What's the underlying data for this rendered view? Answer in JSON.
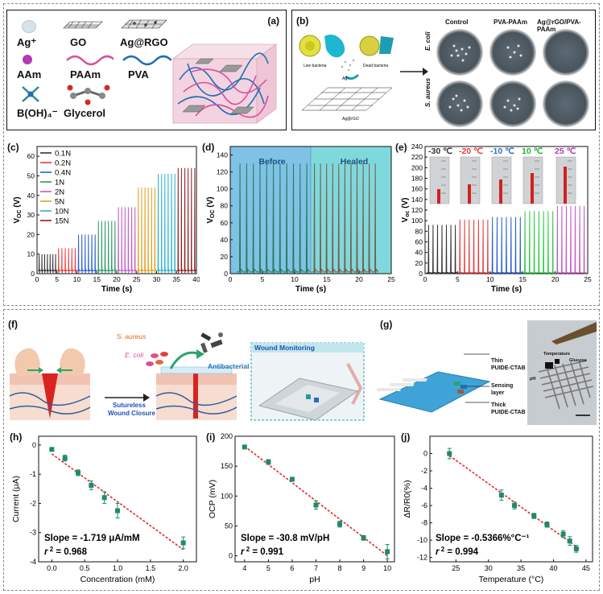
{
  "figure": {
    "panel_labels": [
      "(a)",
      "(b)",
      "(c)",
      "(d)",
      "(e)",
      "(f)",
      "(g)",
      "(h)",
      "(i)",
      "(j)"
    ]
  },
  "panel_a": {
    "materials": [
      "Ag⁺",
      "GO",
      "Ag@RGO",
      "AAm",
      "PAAm",
      "PVA",
      "B(OH)₄⁻",
      "Glycerol"
    ],
    "colors": {
      "pvachain": "#1f6fb5",
      "paamchain": "#d94f9a",
      "gel": "#f3d3e0"
    }
  },
  "panel_b": {
    "col_headers": [
      "Control",
      "PVA-PAAm",
      "Ag@rGO/PVA-PAAm"
    ],
    "row_labels": [
      "E. coli",
      "S. aureus"
    ],
    "schema_labels": [
      "Live bacteria",
      "Dead bacteria",
      "Ag⁺",
      "Ag@rGO"
    ]
  },
  "panel_c": {
    "legend": [
      "0.1N",
      "0.2N",
      "0.4N",
      "1N",
      "2N",
      "5N",
      "10N",
      "15N"
    ],
    "xlabel": "Time (s)",
    "ylabel": "V",
    "ylabel_sub": "OC",
    "ylabel_unit": "(V)",
    "xticks": [
      "0",
      "5",
      "10",
      "15",
      "20",
      "25",
      "30",
      "35",
      "40"
    ],
    "yticks": [
      "0",
      "10",
      "20",
      "30",
      "40",
      "50",
      "60"
    ]
  },
  "panel_d": {
    "labels": [
      "Before",
      "Healed"
    ],
    "xlabel": "Time (s)",
    "ylabel": "V",
    "ylabel_sub": "OC",
    "ylabel_unit": "(V)",
    "xticks": [
      "0",
      "5",
      "10",
      "15",
      "20",
      "25"
    ],
    "yticks": [
      "0",
      "20",
      "40",
      "60",
      "80",
      "100",
      "120",
      "140"
    ]
  },
  "panel_e": {
    "temps": [
      "-30 ℃",
      "-20 ℃",
      "-10 ℃",
      "10 ℃",
      "25 ℃"
    ],
    "xlabel": "Time (s)",
    "ylabel": "V",
    "ylabel_sub": "oc",
    "ylabel_unit": "(V)",
    "xticks": [
      "0",
      "5",
      "10",
      "15",
      "20",
      "25"
    ],
    "yticks": [
      "0",
      "20",
      "40",
      "60",
      "80",
      "100",
      "120",
      "140",
      "160",
      "180",
      "200",
      "220",
      "240"
    ]
  },
  "panel_f": {
    "labels": [
      "S. aureus",
      "E. coli",
      "Antibacterial",
      "Wound Monitoring",
      "Sutureless",
      "Wound Closure"
    ]
  },
  "panel_g": {
    "labels": [
      "Thin",
      "PUIDE-CTAB",
      "Sensing",
      "layer",
      "Thick",
      "PUIDE-CTAB",
      "Temperature",
      "Glucose",
      "pH"
    ]
  },
  "chart_data": [
    {
      "type": "line",
      "panel": "c",
      "xlabel": "Time (s)",
      "ylabel": "VOC (V)",
      "xlim": [
        0,
        40
      ],
      "ylim": [
        0,
        65
      ],
      "series": [
        {
          "name": "0.1N",
          "values": [
            10
          ]
        },
        {
          "name": "0.2N",
          "values": [
            13
          ]
        },
        {
          "name": "0.4N",
          "values": [
            20
          ]
        },
        {
          "name": "1N",
          "values": [
            27
          ]
        },
        {
          "name": "2N",
          "values": [
            34
          ]
        },
        {
          "name": "5N",
          "values": [
            44
          ]
        },
        {
          "name": "10N",
          "values": [
            51
          ]
        },
        {
          "name": "15N",
          "values": [
            54
          ]
        }
      ]
    },
    {
      "type": "line",
      "panel": "d",
      "xlabel": "Time (s)",
      "ylabel": "VOC (V)",
      "xlim": [
        0,
        25
      ],
      "ylim": [
        0,
        150
      ],
      "series": [
        {
          "name": "Before",
          "values": [
            130
          ]
        },
        {
          "name": "Healed",
          "values": [
            130
          ]
        }
      ]
    },
    {
      "type": "line",
      "panel": "e",
      "xlabel": "Time (s)",
      "ylabel": "Voc (V)",
      "xlim": [
        0,
        25
      ],
      "ylim": [
        0,
        240
      ],
      "series": [
        {
          "name": "-30 ℃",
          "values": [
            92
          ]
        },
        {
          "name": "-20 ℃",
          "values": [
            102
          ]
        },
        {
          "name": "-10 ℃",
          "values": [
            107
          ]
        },
        {
          "name": "10 ℃",
          "values": [
            118
          ]
        },
        {
          "name": "25 ℃",
          "values": [
            128
          ]
        }
      ]
    },
    {
      "type": "scatter",
      "panel": "h",
      "xlabel": "Concentration (mM)",
      "ylabel": "Current (μA)",
      "xlim": [
        -0.2,
        2.2
      ],
      "ylim": [
        -4,
        0.3
      ],
      "xticks": [
        "0.0",
        "0.5",
        "1.0",
        "1.5",
        "2.0"
      ],
      "yticks": [
        "0",
        "-1",
        "-2",
        "-3",
        "-4"
      ],
      "x": [
        0.0,
        0.2,
        0.4,
        0.6,
        0.8,
        1.0,
        2.0
      ],
      "y": [
        -0.15,
        -0.45,
        -0.95,
        -1.38,
        -1.8,
        -2.25,
        -3.35
      ],
      "annotations": [
        "Slope = -1.719 μA/mM",
        "r 2 = 0.968"
      ]
    },
    {
      "type": "scatter",
      "panel": "i",
      "xlabel": "pH",
      "ylabel": "OCP (mV)",
      "xlim": [
        3.6,
        10.3
      ],
      "ylim": [
        -10,
        200
      ],
      "xticks": [
        "4",
        "5",
        "6",
        "7",
        "8",
        "9",
        "10"
      ],
      "yticks": [
        "0",
        "50",
        "100",
        "150",
        "200"
      ],
      "x": [
        4,
        5,
        6,
        7,
        8,
        9,
        10
      ],
      "y": [
        182,
        157,
        128,
        85,
        53,
        30,
        7
      ],
      "annotations": [
        "Slope = -30.8 mV/pH",
        "r 2 = 0.991"
      ]
    },
    {
      "type": "scatter",
      "panel": "j",
      "xlabel": "Temperature (°C)",
      "ylabel": "ΔR/R0(%)",
      "xlim": [
        21,
        46
      ],
      "ylim": [
        -12.5,
        2
      ],
      "xticks": [
        "25",
        "30",
        "35",
        "40",
        "45"
      ],
      "yticks": [
        "0",
        "-2",
        "-4",
        "-6",
        "-8",
        "-10",
        "-12"
      ],
      "x": [
        24,
        32,
        34,
        37,
        39,
        41.5,
        42.5,
        43.5
      ],
      "y": [
        0,
        -4.8,
        -6,
        -7.2,
        -8.2,
        -9.3,
        -10.1,
        -11
      ],
      "annotations": [
        "Slope = -0.5366%°C⁻¹",
        "r 2 = 0.994"
      ]
    }
  ]
}
